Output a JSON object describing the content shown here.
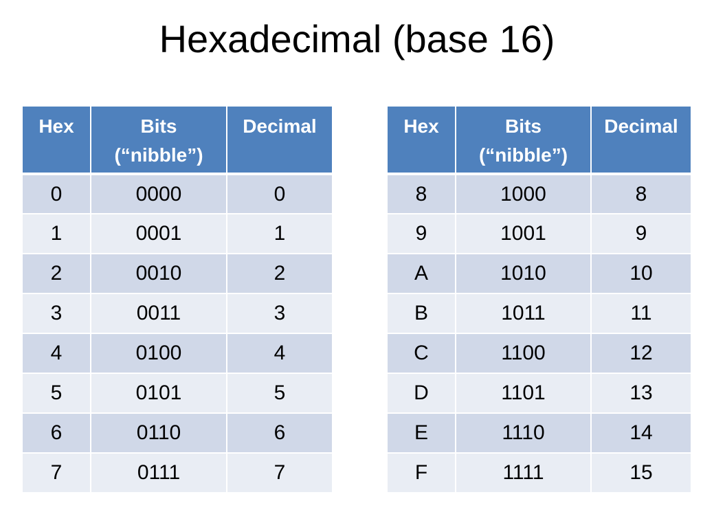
{
  "title": "Hexadecimal (base 16)",
  "headers": {
    "hex": "Hex",
    "bits_line1": "Bits",
    "bits_line2": "(“nibble”)",
    "decimal": "Decimal"
  },
  "left_rows": [
    {
      "hex": "0",
      "bits": "0000",
      "decimal": "0"
    },
    {
      "hex": "1",
      "bits": "0001",
      "decimal": "1"
    },
    {
      "hex": "2",
      "bits": "0010",
      "decimal": "2"
    },
    {
      "hex": "3",
      "bits": "0011",
      "decimal": "3"
    },
    {
      "hex": "4",
      "bits": "0100",
      "decimal": "4"
    },
    {
      "hex": "5",
      "bits": "0101",
      "decimal": "5"
    },
    {
      "hex": "6",
      "bits": "0110",
      "decimal": "6"
    },
    {
      "hex": "7",
      "bits": "0111",
      "decimal": "7"
    }
  ],
  "right_rows": [
    {
      "hex": "8",
      "bits": "1000",
      "decimal": "8"
    },
    {
      "hex": "9",
      "bits": "1001",
      "decimal": "9"
    },
    {
      "hex": "A",
      "bits": "1010",
      "decimal": "10"
    },
    {
      "hex": "B",
      "bits": "1011",
      "decimal": "11"
    },
    {
      "hex": "C",
      "bits": "1100",
      "decimal": "12"
    },
    {
      "hex": "D",
      "bits": "1101",
      "decimal": "13"
    },
    {
      "hex": "E",
      "bits": "1110",
      "decimal": "14"
    },
    {
      "hex": "F",
      "bits": "1111",
      "decimal": "15"
    }
  ],
  "colors": {
    "header_bg": "#4f81bd",
    "row_dark": "#d0d8e8",
    "row_light": "#e9edf4"
  }
}
